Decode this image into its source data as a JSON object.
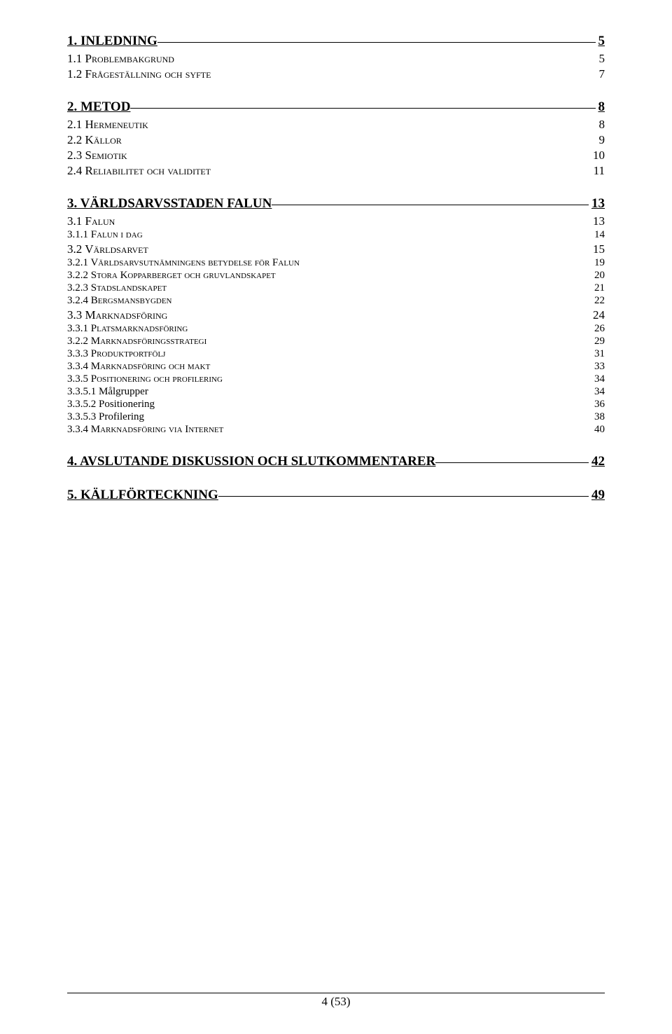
{
  "toc": [
    {
      "level": 1,
      "label": "1. INLEDNING",
      "page": "5",
      "first": true
    },
    {
      "level": 2,
      "label": "1.1 Problembakgrund",
      "page": "5",
      "group": true
    },
    {
      "level": 2,
      "label": "1.2 Frågeställning och syfte",
      "page": "7"
    },
    {
      "level": 1,
      "label": "2. METOD",
      "page": "8"
    },
    {
      "level": 2,
      "label": "2.1 Hermeneutik",
      "page": "8",
      "group": true
    },
    {
      "level": 2,
      "label": "2.2 Källor",
      "page": "9"
    },
    {
      "level": 2,
      "label": "2.3 Semiotik",
      "page": "10"
    },
    {
      "level": 2,
      "label": "2.4 Reliabilitet och validitet",
      "page": "11"
    },
    {
      "level": 1,
      "label": "3. VÄRLDSARVSSTADEN FALUN",
      "page": "13"
    },
    {
      "level": 2,
      "label": "3.1 Falun",
      "page": "13",
      "group": true
    },
    {
      "level": 3,
      "label": "3.1.1 Falun i dag",
      "page": "14"
    },
    {
      "level": 2,
      "label": "3.2 Världsarvet",
      "page": "15"
    },
    {
      "level": 3,
      "label": "3.2.1 Världsarvsutnämningens betydelse för Falun",
      "page": "19"
    },
    {
      "level": 3,
      "label": "3.2.2 Stora Kopparberget och gruvlandskapet",
      "page": "20"
    },
    {
      "level": 3,
      "label": "3.2.3 Stadslandskapet",
      "page": "21"
    },
    {
      "level": 3,
      "label": "3.2.4 Bergsmansbygden",
      "page": "22"
    },
    {
      "level": 2,
      "label": "3.3 Marknadsföring",
      "page": "24"
    },
    {
      "level": 3,
      "label": "3.3.1 Platsmarknadsföring",
      "page": "26"
    },
    {
      "level": 3,
      "label": "3.2.2 Marknadsföringsstrategi",
      "page": "29"
    },
    {
      "level": 3,
      "label": "3.3.3 Produktportfölj",
      "page": "31"
    },
    {
      "level": 3,
      "label": "3.3.4 Marknadsföring och makt",
      "page": "33"
    },
    {
      "level": 3,
      "label": "3.3.5 Positionering och profilering",
      "page": "34"
    },
    {
      "level": 4,
      "label": "3.3.5.1 Målgrupper",
      "page": "34"
    },
    {
      "level": 4,
      "label": "3.3.5.2 Positionering",
      "page": "36"
    },
    {
      "level": 4,
      "label": "3.3.5.3 Profilering",
      "page": "38"
    },
    {
      "level": 3,
      "label": "3.3.4 Marknadsföring via Internet",
      "page": "40"
    },
    {
      "level": 1,
      "label": "4. AVSLUTANDE DISKUSSION OCH SLUTKOMMENTARER",
      "page": "42"
    },
    {
      "level": 1,
      "label": "5. KÄLLFÖRTECKNING",
      "page": "49"
    }
  ],
  "footer": "4 (53)"
}
